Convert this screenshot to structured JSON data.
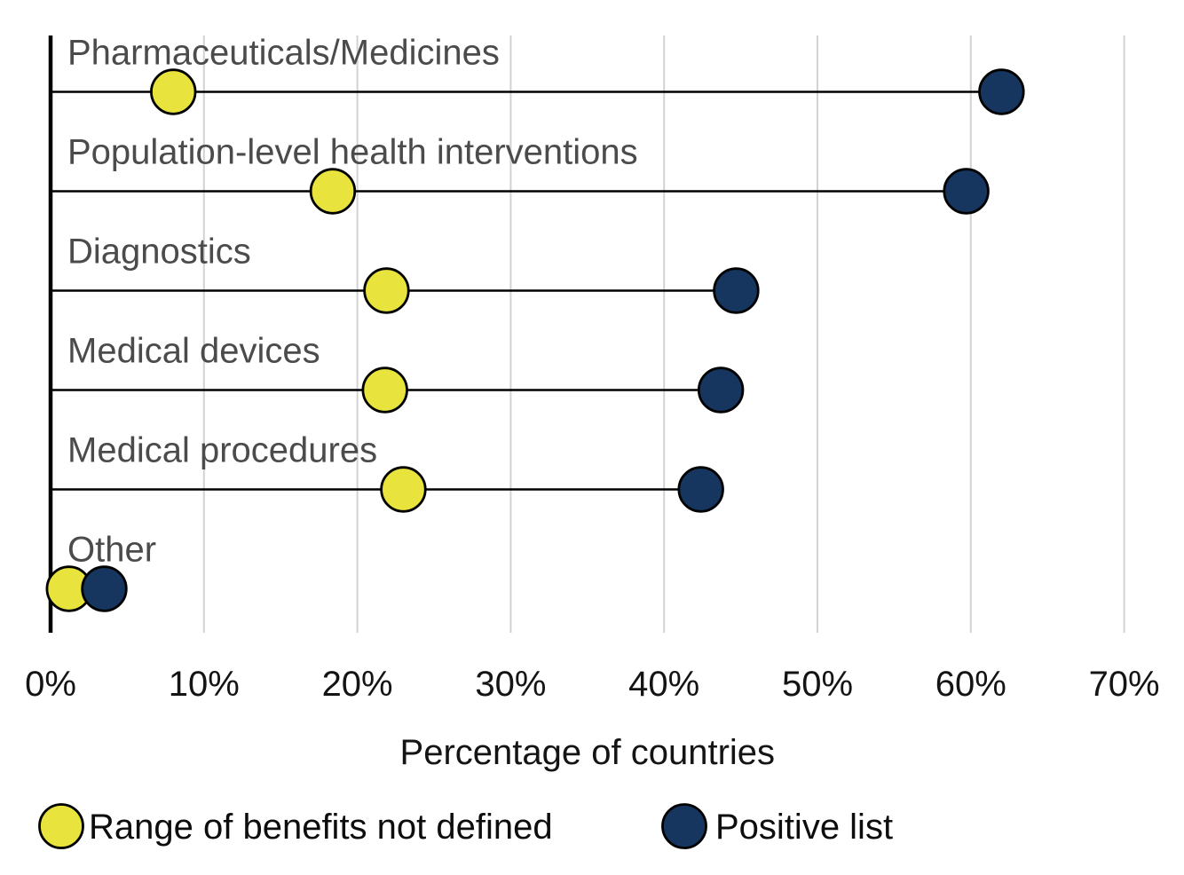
{
  "chart_data": {
    "type": "dumbbell",
    "title": "",
    "categories": [
      "Pharmaceuticals/Medicines",
      "Population-level health interventions",
      "Diagnostics",
      "Medical devices",
      "Medical procedures",
      "Other"
    ],
    "series": [
      {
        "name": "Range of benefits not defined",
        "color": "#e8e33d",
        "values": [
          8.0,
          18.4,
          21.9,
          21.8,
          23.0,
          1.2
        ]
      },
      {
        "name": "Positive list",
        "color": "#16365f",
        "values": [
          62.0,
          59.7,
          44.7,
          43.7,
          42.4,
          3.5
        ]
      }
    ],
    "xlabel": "Percentage of countries",
    "x_ticks": [
      "0%",
      "10%",
      "20%",
      "30%",
      "40%",
      "50%",
      "60%",
      "70%"
    ],
    "x_tick_values": [
      0,
      10,
      20,
      30,
      40,
      50,
      60,
      70
    ],
    "xlim": [
      0,
      73.8
    ],
    "grid": "vertical-only",
    "legend_position": "bottom",
    "colors": {
      "grid": "#d2d2d2",
      "axis": "#000000",
      "connector": "#000000",
      "marker_outline": "#000000",
      "category_label": "#4b4b4b",
      "tick_label": "#141414",
      "legend_label": "#0d0d0d",
      "background": "#ffffff"
    }
  }
}
